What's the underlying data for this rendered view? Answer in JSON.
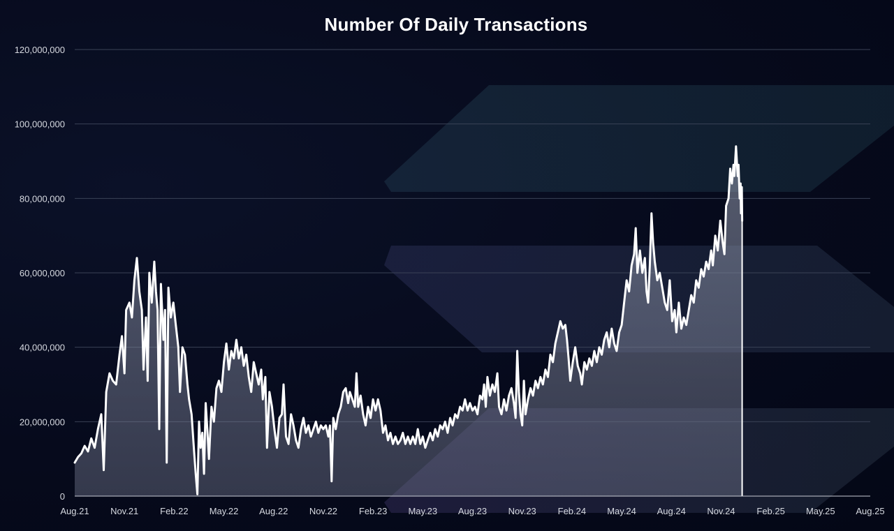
{
  "chart_data": {
    "type": "area",
    "title": "Number Of Daily Transactions",
    "xlabel": "",
    "ylabel": "",
    "ylim": [
      0,
      120000000
    ],
    "grid": true,
    "legend": "none",
    "y_ticks": [
      "0",
      "20,000,000",
      "40,000,000",
      "60,000,000",
      "80,000,000",
      "100,000,000",
      "120,000,000"
    ],
    "x_ticks": [
      "Aug.21",
      "Nov.21",
      "Feb.22",
      "May.22",
      "Aug.22",
      "Nov.22",
      "Feb.23",
      "May.23",
      "Aug.23",
      "Nov.23",
      "Feb.24",
      "May.24",
      "Aug.24",
      "Nov.24",
      "Feb.25",
      "May.25",
      "Aug.25"
    ],
    "series": [
      {
        "line_color": "#ffffff",
        "fill_color": "#8e95a8",
        "points": [
          [
            0,
            9000000
          ],
          [
            0.2,
            10500000
          ],
          [
            0.4,
            11500000
          ],
          [
            0.6,
            13500000
          ],
          [
            0.8,
            12000000
          ],
          [
            1.0,
            15500000
          ],
          [
            1.2,
            13000000
          ],
          [
            1.4,
            18000000
          ],
          [
            1.6,
            22000000
          ],
          [
            1.75,
            7000000
          ],
          [
            1.9,
            28000000
          ],
          [
            2.1,
            33000000
          ],
          [
            2.3,
            31000000
          ],
          [
            2.5,
            30000000
          ],
          [
            2.7,
            38000000
          ],
          [
            2.85,
            43000000
          ],
          [
            3.0,
            33000000
          ],
          [
            3.1,
            50000000
          ],
          [
            3.3,
            52000000
          ],
          [
            3.45,
            48000000
          ],
          [
            3.6,
            58000000
          ],
          [
            3.75,
            64000000
          ],
          [
            3.9,
            55000000
          ],
          [
            4.05,
            50000000
          ],
          [
            4.15,
            34000000
          ],
          [
            4.3,
            48000000
          ],
          [
            4.4,
            31000000
          ],
          [
            4.5,
            60000000
          ],
          [
            4.65,
            52000000
          ],
          [
            4.8,
            63000000
          ],
          [
            4.9,
            55000000
          ],
          [
            5.0,
            50000000
          ],
          [
            5.1,
            18000000
          ],
          [
            5.2,
            57000000
          ],
          [
            5.35,
            42000000
          ],
          [
            5.45,
            50000000
          ],
          [
            5.55,
            9000000
          ],
          [
            5.65,
            56000000
          ],
          [
            5.8,
            48000000
          ],
          [
            5.95,
            52000000
          ],
          [
            6.1,
            46000000
          ],
          [
            6.25,
            40000000
          ],
          [
            6.35,
            28000000
          ],
          [
            6.5,
            40000000
          ],
          [
            6.65,
            38000000
          ],
          [
            6.8,
            30000000
          ],
          [
            6.9,
            26000000
          ],
          [
            7.05,
            22000000
          ],
          [
            7.2,
            12000000
          ],
          [
            7.3,
            6000000
          ],
          [
            7.4,
            500000
          ],
          [
            7.5,
            20000000
          ],
          [
            7.6,
            13000000
          ],
          [
            7.7,
            17000000
          ],
          [
            7.8,
            6000000
          ],
          [
            7.9,
            25000000
          ],
          [
            8.0,
            18000000
          ],
          [
            8.1,
            10000000
          ],
          [
            8.25,
            24000000
          ],
          [
            8.4,
            20000000
          ],
          [
            8.55,
            29000000
          ],
          [
            8.7,
            31000000
          ],
          [
            8.85,
            28000000
          ],
          [
            9.0,
            36000000
          ],
          [
            9.15,
            41000000
          ],
          [
            9.3,
            34000000
          ],
          [
            9.45,
            39000000
          ],
          [
            9.6,
            37000000
          ],
          [
            9.75,
            42000000
          ],
          [
            9.9,
            37000000
          ],
          [
            10.05,
            40000000
          ],
          [
            10.2,
            35000000
          ],
          [
            10.35,
            38000000
          ],
          [
            10.5,
            32000000
          ],
          [
            10.65,
            28000000
          ],
          [
            10.8,
            36000000
          ],
          [
            10.95,
            33000000
          ],
          [
            11.1,
            30000000
          ],
          [
            11.25,
            34000000
          ],
          [
            11.35,
            26000000
          ],
          [
            11.5,
            32000000
          ],
          [
            11.6,
            13000000
          ],
          [
            11.75,
            28000000
          ],
          [
            11.9,
            24000000
          ],
          [
            12.05,
            18000000
          ],
          [
            12.2,
            13000000
          ],
          [
            12.35,
            21000000
          ],
          [
            12.5,
            22000000
          ],
          [
            12.6,
            30000000
          ],
          [
            12.75,
            16000000
          ],
          [
            12.9,
            14000000
          ],
          [
            13.05,
            22000000
          ],
          [
            13.2,
            19000000
          ],
          [
            13.35,
            15000000
          ],
          [
            13.5,
            13000000
          ],
          [
            13.65,
            18000000
          ],
          [
            13.8,
            21000000
          ],
          [
            13.95,
            17000000
          ],
          [
            14.1,
            19000000
          ],
          [
            14.25,
            16000000
          ],
          [
            14.4,
            18000000
          ],
          [
            14.55,
            20000000
          ],
          [
            14.7,
            17000000
          ],
          [
            14.85,
            19000000
          ],
          [
            15.0,
            18000000
          ],
          [
            15.15,
            19000000
          ],
          [
            15.3,
            16000000
          ],
          [
            15.4,
            19000000
          ],
          [
            15.5,
            4000000
          ],
          [
            15.6,
            21000000
          ],
          [
            15.75,
            18000000
          ],
          [
            15.9,
            22000000
          ],
          [
            16.05,
            24000000
          ],
          [
            16.2,
            28000000
          ],
          [
            16.35,
            29000000
          ],
          [
            16.5,
            25000000
          ],
          [
            16.6,
            28000000
          ],
          [
            16.75,
            26000000
          ],
          [
            16.9,
            24000000
          ],
          [
            17.0,
            33000000
          ],
          [
            17.1,
            24000000
          ],
          [
            17.25,
            27000000
          ],
          [
            17.4,
            22000000
          ],
          [
            17.55,
            19000000
          ],
          [
            17.7,
            24000000
          ],
          [
            17.85,
            21000000
          ],
          [
            18.0,
            26000000
          ],
          [
            18.15,
            23000000
          ],
          [
            18.3,
            26000000
          ],
          [
            18.45,
            23000000
          ],
          [
            18.6,
            17000000
          ],
          [
            18.75,
            19000000
          ],
          [
            18.9,
            15000000
          ],
          [
            19.05,
            17000000
          ],
          [
            19.2,
            14000000
          ],
          [
            19.35,
            16000000
          ],
          [
            19.5,
            14000000
          ],
          [
            19.65,
            15000000
          ],
          [
            19.8,
            17000000
          ],
          [
            19.95,
            14000000
          ],
          [
            20.1,
            16000000
          ],
          [
            20.25,
            14000000
          ],
          [
            20.4,
            16000000
          ],
          [
            20.55,
            14000000
          ],
          [
            20.7,
            18000000
          ],
          [
            20.85,
            14000000
          ],
          [
            21.0,
            16000000
          ],
          [
            21.15,
            13000000
          ],
          [
            21.3,
            15000000
          ],
          [
            21.45,
            17000000
          ],
          [
            21.6,
            15000000
          ],
          [
            21.75,
            18000000
          ],
          [
            21.9,
            16000000
          ],
          [
            22.05,
            19000000
          ],
          [
            22.2,
            18000000
          ],
          [
            22.35,
            20000000
          ],
          [
            22.5,
            17000000
          ],
          [
            22.65,
            21000000
          ],
          [
            22.8,
            19000000
          ],
          [
            22.95,
            22000000
          ],
          [
            23.1,
            21000000
          ],
          [
            23.25,
            24000000
          ],
          [
            23.4,
            23000000
          ],
          [
            23.55,
            26000000
          ],
          [
            23.7,
            23000000
          ],
          [
            23.85,
            25000000
          ],
          [
            24.0,
            23000000
          ],
          [
            24.15,
            24000000
          ],
          [
            24.3,
            22000000
          ],
          [
            24.45,
            27000000
          ],
          [
            24.6,
            26000000
          ],
          [
            24.7,
            30000000
          ],
          [
            24.8,
            24000000
          ],
          [
            24.9,
            32000000
          ],
          [
            25.05,
            27000000
          ],
          [
            25.2,
            30000000
          ],
          [
            25.35,
            28000000
          ],
          [
            25.5,
            33000000
          ],
          [
            25.6,
            24000000
          ],
          [
            25.75,
            22000000
          ],
          [
            25.9,
            26000000
          ],
          [
            26.05,
            23000000
          ],
          [
            26.2,
            27000000
          ],
          [
            26.35,
            29000000
          ],
          [
            26.5,
            25000000
          ],
          [
            26.6,
            21000000
          ],
          [
            26.7,
            39000000
          ],
          [
            26.8,
            28000000
          ],
          [
            26.9,
            22000000
          ],
          [
            27.0,
            19000000
          ],
          [
            27.1,
            31000000
          ],
          [
            27.2,
            22000000
          ],
          [
            27.35,
            26000000
          ],
          [
            27.5,
            29000000
          ],
          [
            27.65,
            27000000
          ],
          [
            27.8,
            31000000
          ],
          [
            27.95,
            29000000
          ],
          [
            28.1,
            32000000
          ],
          [
            28.25,
            30000000
          ],
          [
            28.4,
            34000000
          ],
          [
            28.55,
            32000000
          ],
          [
            28.7,
            38000000
          ],
          [
            28.85,
            36000000
          ],
          [
            29.0,
            41000000
          ],
          [
            29.15,
            44000000
          ],
          [
            29.3,
            47000000
          ],
          [
            29.45,
            45000000
          ],
          [
            29.6,
            46000000
          ],
          [
            29.7,
            42000000
          ],
          [
            29.8,
            37000000
          ],
          [
            29.9,
            31000000
          ],
          [
            30.05,
            36000000
          ],
          [
            30.2,
            40000000
          ],
          [
            30.35,
            35000000
          ],
          [
            30.5,
            33000000
          ],
          [
            30.6,
            30000000
          ],
          [
            30.75,
            36000000
          ],
          [
            30.9,
            34000000
          ],
          [
            31.05,
            37000000
          ],
          [
            31.2,
            35000000
          ],
          [
            31.35,
            39000000
          ],
          [
            31.5,
            36000000
          ],
          [
            31.65,
            40000000
          ],
          [
            31.8,
            38000000
          ],
          [
            31.95,
            42000000
          ],
          [
            32.1,
            44000000
          ],
          [
            32.25,
            40000000
          ],
          [
            32.4,
            45000000
          ],
          [
            32.55,
            41000000
          ],
          [
            32.7,
            39000000
          ],
          [
            32.85,
            44000000
          ],
          [
            33.0,
            46000000
          ],
          [
            33.15,
            52000000
          ],
          [
            33.3,
            58000000
          ],
          [
            33.45,
            55000000
          ],
          [
            33.6,
            62000000
          ],
          [
            33.75,
            65000000
          ],
          [
            33.85,
            72000000
          ],
          [
            33.95,
            60000000
          ],
          [
            34.1,
            66000000
          ],
          [
            34.25,
            60000000
          ],
          [
            34.4,
            64000000
          ],
          [
            34.5,
            55000000
          ],
          [
            34.6,
            52000000
          ],
          [
            34.7,
            62000000
          ],
          [
            34.8,
            76000000
          ],
          [
            34.9,
            68000000
          ],
          [
            35.0,
            63000000
          ],
          [
            35.15,
            58000000
          ],
          [
            35.3,
            60000000
          ],
          [
            35.45,
            56000000
          ],
          [
            35.6,
            52000000
          ],
          [
            35.75,
            50000000
          ],
          [
            35.9,
            58000000
          ],
          [
            36.05,
            47000000
          ],
          [
            36.2,
            50000000
          ],
          [
            36.3,
            44000000
          ],
          [
            36.45,
            52000000
          ],
          [
            36.6,
            45000000
          ],
          [
            36.75,
            48000000
          ],
          [
            36.9,
            46000000
          ],
          [
            37.05,
            50000000
          ],
          [
            37.2,
            54000000
          ],
          [
            37.35,
            52000000
          ],
          [
            37.5,
            58000000
          ],
          [
            37.65,
            56000000
          ],
          [
            37.8,
            61000000
          ],
          [
            37.95,
            59000000
          ],
          [
            38.1,
            63000000
          ],
          [
            38.25,
            61000000
          ],
          [
            38.4,
            66000000
          ],
          [
            38.5,
            62000000
          ],
          [
            38.65,
            70000000
          ],
          [
            38.8,
            66000000
          ],
          [
            38.95,
            74000000
          ],
          [
            39.1,
            68000000
          ],
          [
            39.2,
            65000000
          ],
          [
            39.3,
            78000000
          ],
          [
            39.45,
            80000000
          ],
          [
            39.55,
            88000000
          ],
          [
            39.65,
            84000000
          ],
          [
            39.75,
            89000000
          ],
          [
            39.8,
            86000000
          ],
          [
            39.9,
            94000000
          ],
          [
            40.0,
            86000000
          ],
          [
            40.05,
            89000000
          ],
          [
            40.12,
            80000000
          ],
          [
            40.18,
            84000000
          ],
          [
            40.2,
            76000000
          ],
          [
            40.25,
            83000000
          ],
          [
            40.27,
            74000000
          ]
        ]
      }
    ]
  }
}
